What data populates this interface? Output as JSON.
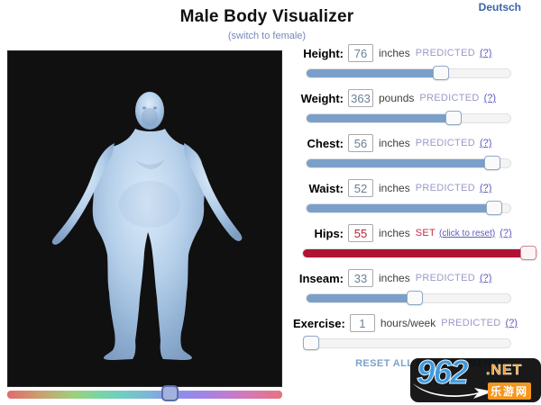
{
  "header": {
    "language_link": "Deutsch",
    "title": "Male Body Visualizer",
    "switch_link": "(switch to female)"
  },
  "viewer": {
    "model_description": "3D male body model, front view, light blue on black",
    "hue_slider_pct": 59
  },
  "controls": {
    "rows": [
      {
        "label": "Height:",
        "value": "76",
        "unit": "inches",
        "status": "PREDICTED",
        "help": "(?)",
        "fill_pct": 66,
        "variant": "blue"
      },
      {
        "label": "Weight:",
        "value": "363",
        "unit": "pounds",
        "status": "PREDICTED",
        "help": "(?)",
        "fill_pct": 72,
        "variant": "blue"
      },
      {
        "label": "Chest:",
        "value": "56",
        "unit": "inches",
        "status": "PREDICTED",
        "help": "(?)",
        "fill_pct": 91,
        "variant": "blue"
      },
      {
        "label": "Waist:",
        "value": "52",
        "unit": "inches",
        "status": "PREDICTED",
        "help": "(?)",
        "fill_pct": 92,
        "variant": "blue"
      },
      {
        "label": "Hips:",
        "value": "55",
        "unit": "inches",
        "status": "SET",
        "reset_link": "(click to reset)",
        "help": "(?)",
        "fill_pct": 96,
        "variant": "red"
      },
      {
        "label": "Inseam:",
        "value": "33",
        "unit": "inches",
        "status": "PREDICTED",
        "help": "(?)",
        "fill_pct": 53,
        "variant": "blue"
      },
      {
        "label": "Exercise:",
        "value": "1",
        "unit": "hours/week",
        "status": "PREDICTED",
        "help": "(?)",
        "fill_pct": 2,
        "variant": "blue"
      }
    ],
    "reset_all_label": "RESET ALL MEASUREMENTS"
  },
  "watermark": {
    "site": "962",
    "tld": ".NET",
    "cn_name": "乐游网"
  },
  "colors": {
    "slider_blue": "#7aa0ca",
    "slider_set_red": "#b01233",
    "link_purple": "#5b5bbd",
    "predicted_text": "#9a9ac8",
    "set_text": "#c82846",
    "canvas_bg": "#101010",
    "figure_blue": "#b6d0ea",
    "watermark_blue": "#3d9be0",
    "watermark_orange": "#f5961e"
  }
}
